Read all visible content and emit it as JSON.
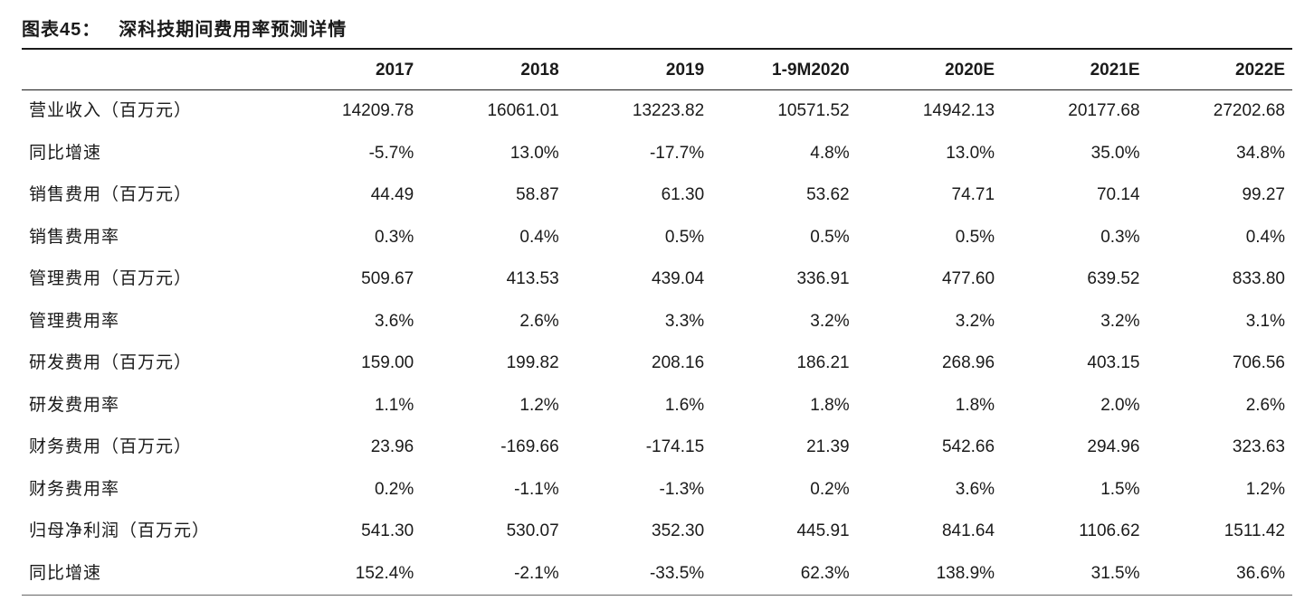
{
  "title_prefix": "图表45：",
  "title_main": "深科技期间费用率预测详情",
  "table": {
    "columns": [
      "",
      "2017",
      "2018",
      "2019",
      "1-9M2020",
      "2020E",
      "2021E",
      "2022E"
    ],
    "rows": [
      [
        "营业收入（百万元）",
        "14209.78",
        "16061.01",
        "13223.82",
        "10571.52",
        "14942.13",
        "20177.68",
        "27202.68"
      ],
      [
        "同比增速",
        "-5.7%",
        "13.0%",
        "-17.7%",
        "4.8%",
        "13.0%",
        "35.0%",
        "34.8%"
      ],
      [
        "销售费用（百万元）",
        "44.49",
        "58.87",
        "61.30",
        "53.62",
        "74.71",
        "70.14",
        "99.27"
      ],
      [
        "销售费用率",
        "0.3%",
        "0.4%",
        "0.5%",
        "0.5%",
        "0.5%",
        "0.3%",
        "0.4%"
      ],
      [
        "管理费用（百万元）",
        "509.67",
        "413.53",
        "439.04",
        "336.91",
        "477.60",
        "639.52",
        "833.80"
      ],
      [
        "管理费用率",
        "3.6%",
        "2.6%",
        "3.3%",
        "3.2%",
        "3.2%",
        "3.2%",
        "3.1%"
      ],
      [
        "研发费用（百万元）",
        "159.00",
        "199.82",
        "208.16",
        "186.21",
        "268.96",
        "403.15",
        "706.56"
      ],
      [
        "研发费用率",
        "1.1%",
        "1.2%",
        "1.6%",
        "1.8%",
        "1.8%",
        "2.0%",
        "2.6%"
      ],
      [
        "财务费用（百万元）",
        "23.96",
        "-169.66",
        "-174.15",
        "21.39",
        "542.66",
        "294.96",
        "323.63"
      ],
      [
        "财务费用率",
        "0.2%",
        "-1.1%",
        "-1.3%",
        "0.2%",
        "3.6%",
        "1.5%",
        "1.2%"
      ],
      [
        "归母净利润（百万元）",
        "541.30",
        "530.07",
        "352.30",
        "445.91",
        "841.64",
        "1106.62",
        "1511.42"
      ],
      [
        "同比增速",
        "152.4%",
        "-2.1%",
        "-33.5%",
        "62.3%",
        "138.9%",
        "31.5%",
        "36.6%"
      ]
    ],
    "text_color": "#1a1a1a",
    "header_border_color": "#1a1a1a",
    "body_fontsize": 19,
    "header_fontsize": 19,
    "title_fontsize": 20,
    "background_color": "#ffffff"
  }
}
